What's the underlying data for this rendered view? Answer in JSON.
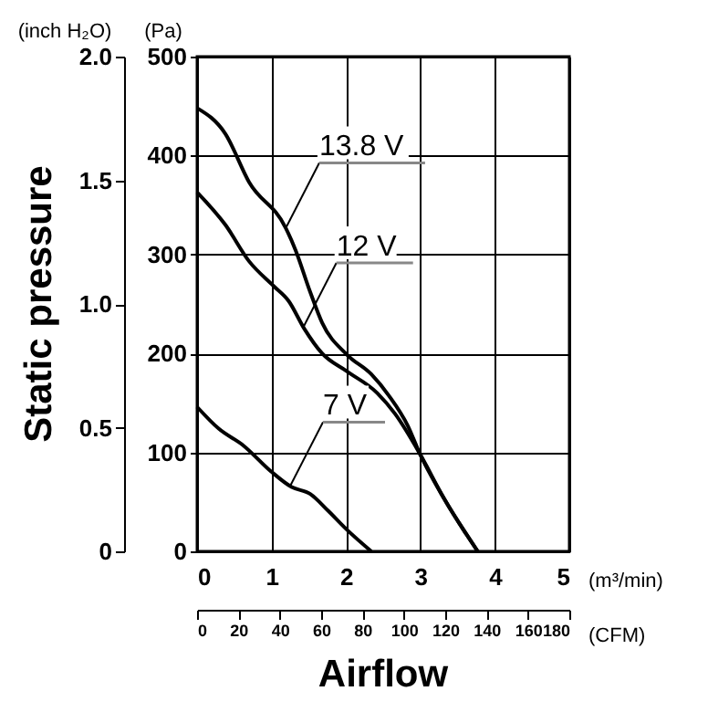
{
  "chart_data": {
    "type": "line",
    "xlabel": "(m³/min)",
    "x2label": "(CFM)",
    "ylabel": "(Pa)",
    "y2label": "(inch H₂O)",
    "xlim": [
      0,
      5
    ],
    "xticks": [
      0,
      1,
      2,
      3,
      4,
      5
    ],
    "x2lim": [
      0,
      180
    ],
    "x2ticks": [
      0,
      20,
      40,
      60,
      80,
      100,
      120,
      140,
      160,
      180
    ],
    "ylim": [
      0,
      500
    ],
    "yticks": [
      0,
      100,
      200,
      300,
      400,
      500
    ],
    "y2lim": [
      0,
      2
    ],
    "y2ticks": [
      0,
      0.5,
      {
        "value": 1,
        "label": "1.0"
      },
      1.5,
      {
        "value": 2,
        "label": "2.0"
      }
    ],
    "grid": true,
    "series": [
      {
        "color": "#000000",
        "x": [
          0,
          0.38,
          0.7,
          1.19,
          1.32,
          1.52,
          1.68,
          2.01,
          2.34,
          2.58,
          2.83,
          2.99,
          3.32,
          3.77
        ],
        "values": [
          448,
          422,
          373,
          327,
          305,
          262,
          231,
          199,
          179,
          157,
          127,
          99,
          53,
          0
        ]
      },
      {
        "color": "#000000",
        "x": [
          0,
          0.38,
          0.7,
          1.03,
          1.23,
          1.44,
          1.68,
          2.01,
          2.42,
          2.66,
          2.99,
          3.32,
          3.77
        ],
        "values": [
          363,
          330,
          293,
          268,
          253,
          225,
          200,
          182,
          160,
          139,
          99,
          53,
          0
        ]
      },
      {
        "color": "#000000",
        "x": [
          0,
          0.29,
          0.62,
          0.99,
          1.27,
          1.52,
          1.76,
          2.01,
          2.34
        ],
        "values": [
          146,
          124,
          107,
          81,
          65,
          58,
          41,
          22,
          0
        ]
      }
    ],
    "annotations": [
      "Static pressure",
      "Airflow",
      {
        "text": "13.8 V",
        "x": 1.2,
        "y": 328
      },
      {
        "text": "12 V",
        "x": 1.43,
        "y": 227
      },
      {
        "text": "7 V",
        "x": 1.25,
        "y": 66
      }
    ]
  }
}
